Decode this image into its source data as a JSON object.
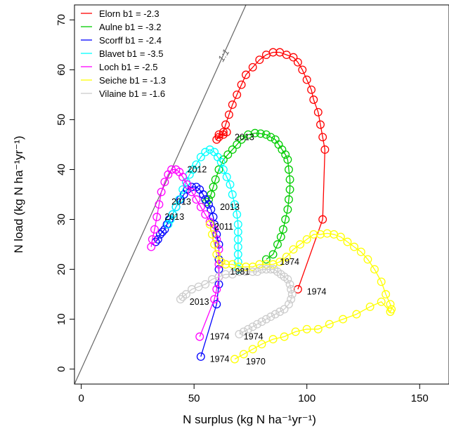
{
  "chart_data": {
    "type": "line",
    "title": "",
    "xlabel": "N surplus (kg N ha⁻¹yr⁻¹)",
    "ylabel": "N load (kg N ha⁻¹yr⁻¹)",
    "xlim": [
      -3,
      163
    ],
    "ylim": [
      -3,
      73
    ],
    "xticks": [
      0,
      50,
      100,
      150
    ],
    "yticks": [
      0,
      10,
      20,
      30,
      40,
      50,
      60,
      70
    ],
    "grid": false,
    "legend": "top-left",
    "reference_line": {
      "label": "1:1",
      "color": "#666666"
    },
    "series": [
      {
        "name": "Elorn b1 = -2.3",
        "color": "#ff0000",
        "points": [
          [
            96,
            16
          ],
          [
            107,
            30
          ],
          [
            108,
            44
          ],
          [
            107,
            46.5
          ],
          [
            106,
            49
          ],
          [
            105,
            51.5
          ],
          [
            103,
            54
          ],
          [
            102,
            56
          ],
          [
            100,
            58
          ],
          [
            98,
            60
          ],
          [
            96,
            61.5
          ],
          [
            94,
            62.5
          ],
          [
            91,
            63
          ],
          [
            88,
            63.5
          ],
          [
            85,
            63.5
          ],
          [
            82,
            63
          ],
          [
            79,
            62
          ],
          [
            76,
            60.5
          ],
          [
            73,
            59
          ],
          [
            71,
            57
          ],
          [
            69,
            55
          ],
          [
            67,
            53
          ],
          [
            65.5,
            51
          ],
          [
            64,
            49
          ],
          [
            63,
            47.5
          ],
          [
            61,
            46.5
          ],
          [
            60,
            46
          ],
          [
            61,
            47
          ],
          [
            63,
            47
          ],
          [
            64.5,
            47.5
          ]
        ]
      },
      {
        "name": "Aulne b1 = -3.2",
        "color": "#00cc00",
        "points": [
          [
            82,
            22
          ],
          [
            85,
            23
          ],
          [
            87,
            25
          ],
          [
            88.5,
            26.5
          ],
          [
            89.5,
            28
          ],
          [
            90.5,
            30
          ],
          [
            91.5,
            32
          ],
          [
            92,
            34
          ],
          [
            92.5,
            36
          ],
          [
            92.5,
            38
          ],
          [
            92,
            40
          ],
          [
            91.5,
            42
          ],
          [
            90.5,
            43
          ],
          [
            89,
            44
          ],
          [
            87.5,
            45
          ],
          [
            86,
            46
          ],
          [
            84,
            46.5
          ],
          [
            82,
            47
          ],
          [
            79.5,
            47.2
          ],
          [
            77,
            47.3
          ],
          [
            74,
            47
          ],
          [
            71,
            46
          ],
          [
            69,
            45
          ],
          [
            67,
            44
          ],
          [
            65,
            43
          ],
          [
            63,
            42
          ],
          [
            61,
            40
          ],
          [
            59.5,
            38
          ],
          [
            58.5,
            36.5
          ],
          [
            57.5,
            35
          ],
          [
            56.5,
            34
          ],
          [
            55.5,
            33.5
          ]
        ]
      },
      {
        "name": "Scorff b1 = -2.4",
        "color": "#0000ff",
        "points": [
          [
            53,
            2.5
          ],
          [
            60,
            13
          ],
          [
            61,
            17
          ],
          [
            61,
            20
          ],
          [
            61,
            22
          ],
          [
            61,
            25
          ],
          [
            60,
            27
          ],
          [
            59,
            29
          ],
          [
            58.5,
            30.5
          ],
          [
            57.5,
            32
          ],
          [
            56.5,
            33
          ],
          [
            55,
            34
          ],
          [
            54,
            35
          ],
          [
            52.5,
            36
          ],
          [
            51,
            36.5
          ],
          [
            49,
            36.5
          ],
          [
            47,
            36
          ],
          [
            45.5,
            35
          ],
          [
            44,
            34
          ],
          [
            42,
            32.5
          ],
          [
            40.5,
            31
          ],
          [
            39,
            30
          ],
          [
            38,
            29
          ],
          [
            37,
            28
          ],
          [
            36,
            27.5
          ],
          [
            35,
            27
          ],
          [
            34,
            26
          ],
          [
            33,
            25.5
          ]
        ]
      },
      {
        "name": "Blavet b1 = -3.5",
        "color": "#00ffff",
        "points": [
          [
            69.5,
            20
          ],
          [
            69.5,
            21.5
          ],
          [
            69.5,
            23
          ],
          [
            69.5,
            24.5
          ],
          [
            69.5,
            26
          ],
          [
            69.5,
            27.5
          ],
          [
            69.5,
            29
          ],
          [
            69,
            31
          ],
          [
            68,
            33
          ],
          [
            67,
            35
          ],
          [
            66,
            37
          ],
          [
            64.5,
            38.5
          ],
          [
            63,
            40
          ],
          [
            62,
            41.5
          ],
          [
            60.5,
            42.5
          ],
          [
            59,
            43.5
          ],
          [
            57,
            44
          ],
          [
            55,
            43.5
          ],
          [
            53,
            42.5
          ],
          [
            51,
            41
          ],
          [
            49.5,
            40
          ],
          [
            48,
            39
          ],
          [
            46.5,
            37.5
          ],
          [
            45,
            36
          ],
          [
            43.5,
            34
          ],
          [
            42,
            32.5
          ],
          [
            40.5,
            31
          ],
          [
            39.5,
            30
          ],
          [
            38.5,
            29
          ]
        ]
      },
      {
        "name": "Loch b1 = -2.5",
        "color": "#ff00ff",
        "points": [
          [
            52.5,
            6.5
          ],
          [
            59,
            14
          ],
          [
            60,
            16
          ],
          [
            61,
            18.5
          ],
          [
            61,
            21
          ],
          [
            61,
            24
          ],
          [
            60,
            26
          ],
          [
            59,
            28
          ],
          [
            57,
            29.5
          ],
          [
            55,
            31
          ],
          [
            53,
            32.5
          ],
          [
            51,
            34
          ],
          [
            49,
            35.5
          ],
          [
            47,
            37
          ],
          [
            45,
            38.5
          ],
          [
            43.5,
            39.5
          ],
          [
            42,
            40
          ],
          [
            40,
            40
          ],
          [
            38.5,
            39
          ],
          [
            37,
            37.5
          ],
          [
            35.5,
            35.5
          ],
          [
            34.5,
            33
          ],
          [
            33.5,
            30.5
          ],
          [
            32.5,
            28
          ],
          [
            31.5,
            26
          ],
          [
            31,
            24.5
          ]
        ]
      },
      {
        "name": "Seiche b1 = -1.3",
        "color": "#ffff00",
        "points": [
          [
            68,
            2
          ],
          [
            72,
            3
          ],
          [
            76,
            4
          ],
          [
            80,
            5
          ],
          [
            85,
            6
          ],
          [
            90,
            6.5
          ],
          [
            95,
            7.5
          ],
          [
            100,
            8
          ],
          [
            105,
            8
          ],
          [
            110,
            9
          ],
          [
            116,
            10
          ],
          [
            122,
            11
          ],
          [
            128,
            12.5
          ],
          [
            133,
            13.5
          ],
          [
            137,
            11.5
          ],
          [
            137.5,
            12
          ],
          [
            137,
            13
          ],
          [
            135,
            15
          ],
          [
            133,
            17.5
          ],
          [
            130,
            20
          ],
          [
            127,
            22
          ],
          [
            124,
            23.5
          ],
          [
            121,
            24.5
          ],
          [
            118,
            25.5
          ],
          [
            115,
            26.5
          ],
          [
            112,
            27
          ],
          [
            109,
            27.2
          ],
          [
            106,
            27
          ],
          [
            103,
            27
          ],
          [
            100,
            26
          ],
          [
            97,
            25
          ],
          [
            94,
            24
          ],
          [
            91,
            22.5
          ],
          [
            88,
            21.5
          ],
          [
            85,
            21
          ],
          [
            82,
            21
          ],
          [
            79,
            21
          ],
          [
            76,
            20.5
          ],
          [
            73,
            20.5
          ],
          [
            70,
            20.5
          ],
          [
            67,
            21
          ],
          [
            64,
            21
          ],
          [
            62,
            21.5
          ],
          [
            60,
            23
          ],
          [
            59,
            25
          ],
          [
            58,
            27
          ],
          [
            57,
            29
          ]
        ]
      },
      {
        "name": "Vilaine b1 = -1.6",
        "color": "#cccccc",
        "points": [
          [
            70,
            7
          ],
          [
            72,
            7.5
          ],
          [
            74,
            8
          ],
          [
            76,
            8.5
          ],
          [
            78,
            9
          ],
          [
            80,
            9.5
          ],
          [
            82,
            10
          ],
          [
            84,
            10.5
          ],
          [
            86,
            11
          ],
          [
            88,
            11.5
          ],
          [
            90,
            12
          ],
          [
            92,
            13
          ],
          [
            93,
            14
          ],
          [
            93.5,
            15
          ],
          [
            93,
            16
          ],
          [
            92.5,
            17
          ],
          [
            91.5,
            18
          ],
          [
            90,
            18.5
          ],
          [
            88.5,
            19
          ],
          [
            87,
            19.5
          ],
          [
            85.5,
            20
          ],
          [
            84,
            20
          ],
          [
            82,
            20
          ],
          [
            80,
            20
          ],
          [
            78,
            19.5
          ],
          [
            76,
            19.5
          ],
          [
            73,
            19.5
          ],
          [
            70,
            19.5
          ],
          [
            67,
            19
          ],
          [
            64,
            19
          ],
          [
            61,
            18.5
          ],
          [
            58,
            18
          ],
          [
            55,
            17
          ],
          [
            52,
            16.5
          ],
          [
            49,
            16
          ],
          [
            46.5,
            15
          ],
          [
            45,
            14.5
          ],
          [
            44,
            14
          ]
        ]
      }
    ],
    "annotations": [
      {
        "text": "2013",
        "x": 68,
        "y": 46.5
      },
      {
        "text": "2012",
        "x": 47,
        "y": 40
      },
      {
        "text": "2013",
        "x": 40,
        "y": 33.5
      },
      {
        "text": "2013",
        "x": 61.5,
        "y": 32.5
      },
      {
        "text": "2013",
        "x": 37,
        "y": 30.5
      },
      {
        "text": "2011",
        "x": 59,
        "y": 28.5
      },
      {
        "text": "1974",
        "x": 88,
        "y": 21.5
      },
      {
        "text": "1981",
        "x": 66,
        "y": 19.5
      },
      {
        "text": "1974",
        "x": 100,
        "y": 15.5
      },
      {
        "text": "2013",
        "x": 48,
        "y": 13.5
      },
      {
        "text": "1974",
        "x": 57,
        "y": 6.5
      },
      {
        "text": "1974",
        "x": 72,
        "y": 6.5
      },
      {
        "text": "1974",
        "x": 57,
        "y": 2
      },
      {
        "text": "1970",
        "x": 73,
        "y": 1.5
      }
    ]
  }
}
